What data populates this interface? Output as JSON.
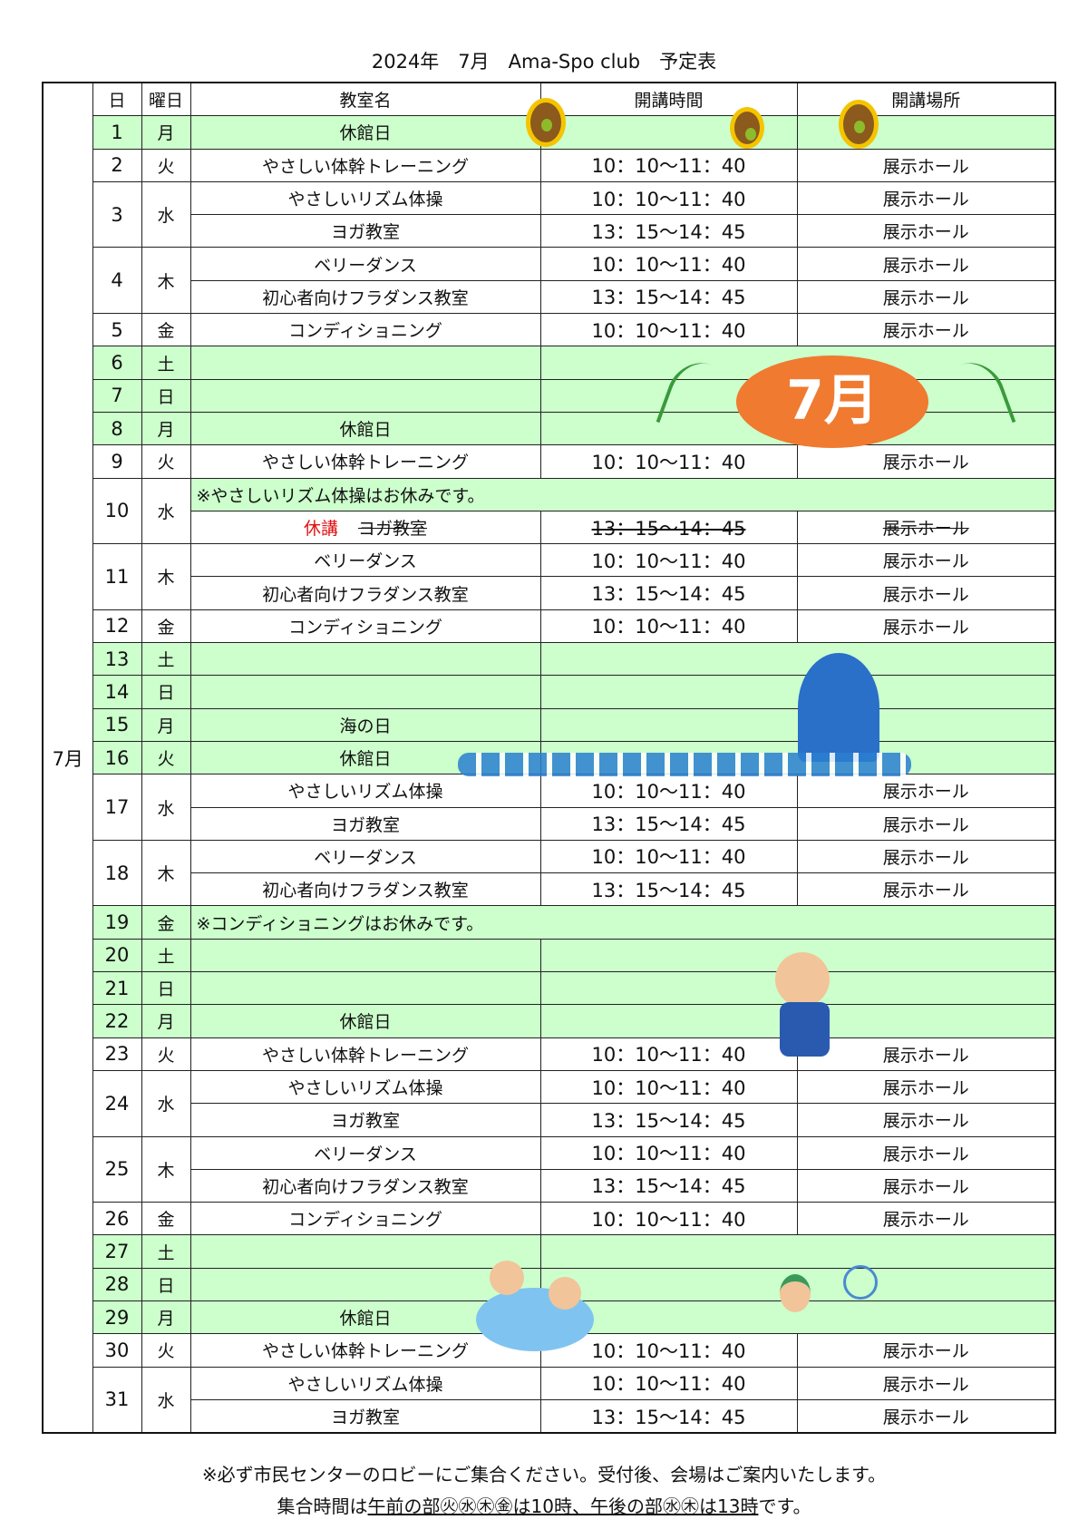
{
  "title": "2024年　7月　Ama-Spo club　予定表",
  "month_label": "7月",
  "headers": {
    "day": "日",
    "weekday": "曜日",
    "class": "教室名",
    "time": "開講時間",
    "place": "開講場所"
  },
  "colors": {
    "holiday_row": "#ccffcc",
    "cancel_text": "#e01010",
    "border": "#222222"
  },
  "days": [
    {
      "d": "1",
      "w": "月",
      "green": true,
      "split": true,
      "rows": [
        {
          "name": "休館日",
          "time": "",
          "place": ""
        }
      ]
    },
    {
      "d": "2",
      "w": "火",
      "rows": [
        {
          "name": "やさしい体幹トレーニング",
          "time": "10：10〜11：40",
          "place": "展示ホール"
        }
      ]
    },
    {
      "d": "3",
      "w": "水",
      "rows": [
        {
          "name": "やさしいリズム体操",
          "time": "10：10〜11：40",
          "place": "展示ホール"
        },
        {
          "name": "ヨガ教室",
          "time": "13：15〜14：45",
          "place": "展示ホール"
        }
      ]
    },
    {
      "d": "4",
      "w": "木",
      "rows": [
        {
          "name": "ベリーダンス",
          "time": "10：10〜11：40",
          "place": "展示ホール"
        },
        {
          "name": "初心者向けフラダンス教室",
          "time": "13：15〜14：45",
          "place": "展示ホール"
        }
      ]
    },
    {
      "d": "5",
      "w": "金",
      "rows": [
        {
          "name": "コンディショニング",
          "time": "10：10〜11：40",
          "place": "展示ホール"
        }
      ]
    },
    {
      "d": "6",
      "w": "土",
      "green": true,
      "rows": [
        {
          "name": "",
          "time": ""
        }
      ]
    },
    {
      "d": "7",
      "w": "日",
      "green": true,
      "rows": [
        {
          "name": "",
          "time": ""
        }
      ]
    },
    {
      "d": "8",
      "w": "月",
      "green": true,
      "rows": [
        {
          "name": "休館日",
          "time": ""
        }
      ]
    },
    {
      "d": "9",
      "w": "火",
      "rows": [
        {
          "name": "やさしい体幹トレーニング",
          "time": "10：10〜11：40",
          "place": "展示ホール"
        }
      ]
    },
    {
      "d": "10",
      "w": "水",
      "rows": [
        {
          "note": "※やさしいリズム体操はお休みです。"
        },
        {
          "cancel": "休講",
          "name": "ヨガ教室",
          "time": "13：15〜14：45",
          "place": "展示ホール",
          "strike": true
        }
      ]
    },
    {
      "d": "11",
      "w": "木",
      "rows": [
        {
          "name": "ベリーダンス",
          "time": "10：10〜11：40",
          "place": "展示ホール"
        },
        {
          "name": "初心者向けフラダンス教室",
          "time": "13：15〜14：45",
          "place": "展示ホール"
        }
      ]
    },
    {
      "d": "12",
      "w": "金",
      "rows": [
        {
          "name": "コンディショニング",
          "time": "10：10〜11：40",
          "place": "展示ホール"
        }
      ]
    },
    {
      "d": "13",
      "w": "土",
      "green": true,
      "rows": [
        {
          "name": "",
          "time": ""
        }
      ]
    },
    {
      "d": "14",
      "w": "日",
      "green": true,
      "rows": [
        {
          "name": "",
          "time": ""
        }
      ]
    },
    {
      "d": "15",
      "w": "月",
      "green": true,
      "rows": [
        {
          "name": "海の日",
          "time": ""
        }
      ]
    },
    {
      "d": "16",
      "w": "火",
      "green": true,
      "rows": [
        {
          "name": "休館日",
          "time": ""
        }
      ]
    },
    {
      "d": "17",
      "w": "水",
      "rows": [
        {
          "name": "やさしいリズム体操",
          "time": "10：10〜11：40",
          "place": "展示ホール"
        },
        {
          "name": "ヨガ教室",
          "time": "13：15〜14：45",
          "place": "展示ホール"
        }
      ]
    },
    {
      "d": "18",
      "w": "木",
      "rows": [
        {
          "name": "ベリーダンス",
          "time": "10：10〜11：40",
          "place": "展示ホール"
        },
        {
          "name": "初心者向けフラダンス教室",
          "time": "13：15〜14：45",
          "place": "展示ホール"
        }
      ]
    },
    {
      "d": "19",
      "w": "金",
      "green": true,
      "rows": [
        {
          "note": "※コンディショニングはお休みです。"
        }
      ]
    },
    {
      "d": "20",
      "w": "土",
      "green": true,
      "rows": [
        {
          "name": "",
          "time": ""
        }
      ]
    },
    {
      "d": "21",
      "w": "日",
      "green": true,
      "rows": [
        {
          "name": "",
          "time": ""
        }
      ]
    },
    {
      "d": "22",
      "w": "月",
      "green": true,
      "rows": [
        {
          "name": "休館日",
          "time": ""
        }
      ]
    },
    {
      "d": "23",
      "w": "火",
      "rows": [
        {
          "name": "やさしい体幹トレーニング",
          "time": "10：10〜11：40",
          "place": "展示ホール"
        }
      ]
    },
    {
      "d": "24",
      "w": "水",
      "rows": [
        {
          "name": "やさしいリズム体操",
          "time": "10：10〜11：40",
          "place": "展示ホール"
        },
        {
          "name": "ヨガ教室",
          "time": "13：15〜14：45",
          "place": "展示ホール"
        }
      ]
    },
    {
      "d": "25",
      "w": "木",
      "rows": [
        {
          "name": "ベリーダンス",
          "time": "10：10〜11：40",
          "place": "展示ホール"
        },
        {
          "name": "初心者向けフラダンス教室",
          "time": "13：15〜14：45",
          "place": "展示ホール"
        }
      ]
    },
    {
      "d": "26",
      "w": "金",
      "rows": [
        {
          "name": "コンディショニング",
          "time": "10：10〜11：40",
          "place": "展示ホール"
        }
      ]
    },
    {
      "d": "27",
      "w": "土",
      "green": true,
      "rows": [
        {
          "name": "",
          "time": ""
        }
      ]
    },
    {
      "d": "28",
      "w": "日",
      "green": true,
      "rows": [
        {
          "name": "",
          "time": ""
        }
      ]
    },
    {
      "d": "29",
      "w": "月",
      "green": true,
      "rows": [
        {
          "name": "休館日",
          "time": ""
        }
      ]
    },
    {
      "d": "30",
      "w": "火",
      "rows": [
        {
          "name": "やさしい体幹トレーニング",
          "time": "10：10〜11：40",
          "place": "展示ホール"
        }
      ]
    },
    {
      "d": "31",
      "w": "水",
      "rows": [
        {
          "name": "やさしいリズム体操",
          "time": "10：10〜11：40",
          "place": "展示ホール"
        },
        {
          "name": "ヨガ教室",
          "time": "13：15〜14：45",
          "place": "展示ホール"
        }
      ]
    }
  ],
  "footer": {
    "line1": "※必ず市民センターのロビーにご集合ください。受付後、会場はご案内いたします。",
    "line2_pre": "集合時間は",
    "line2_underlined": "午前の部㊋㊌㊍㊎は10時、午後の部㊌㊍は13時",
    "line2_post": "です。"
  },
  "illustrations": {
    "july_badge": "7月",
    "icons": [
      "sunflower",
      "tanabata-bamboo",
      "surfing-rabbit",
      "wave",
      "radio-exercise-boy",
      "kids-pool",
      "bug-catching-boy"
    ]
  }
}
